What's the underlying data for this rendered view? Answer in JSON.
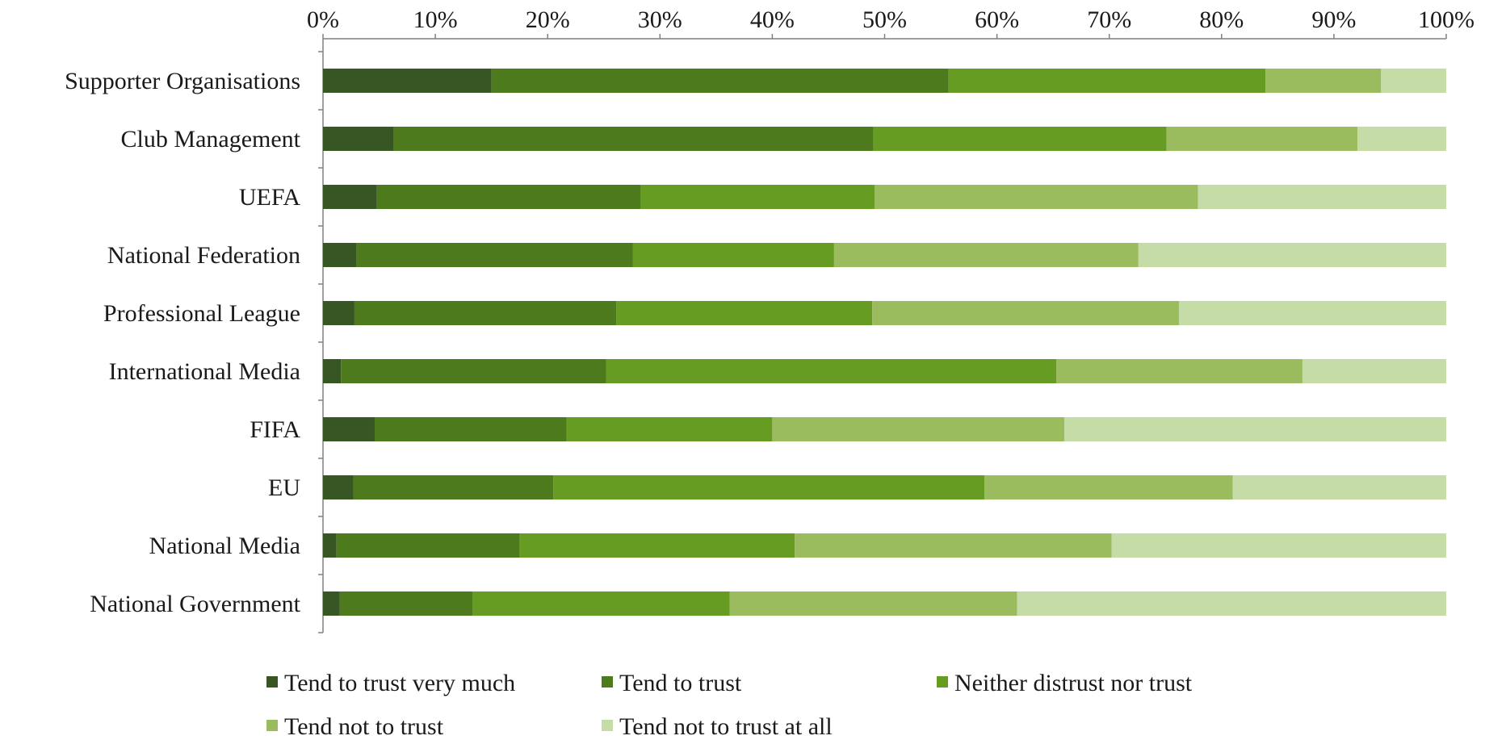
{
  "chart_data": {
    "type": "bar",
    "orientation": "horizontal",
    "stacked": "percent",
    "categories": [
      "Supporter Organisations",
      "Club Management",
      "UEFA",
      "National Federation",
      "Professional League",
      "International Media",
      "FIFA",
      "EU",
      "National Media",
      "National Government"
    ],
    "series": [
      {
        "name": "Tend to trust very much",
        "color": "#375623",
        "values": [
          15,
          6.3,
          4.8,
          3,
          2.8,
          1.6,
          4.6,
          2.7,
          1.2,
          1.5
        ]
      },
      {
        "name": "Tend to trust",
        "color": "#4e7a1e",
        "values": [
          40.7,
          42.7,
          23.5,
          24.6,
          23.3,
          23.6,
          17.1,
          17.8,
          16.3,
          11.8
        ]
      },
      {
        "name": "Neither distrust nor trust",
        "color": "#669c22",
        "values": [
          28.2,
          26.1,
          20.8,
          17.9,
          22.8,
          40.1,
          18.3,
          38.4,
          24.5,
          22.9
        ]
      },
      {
        "name": "Tend not to trust",
        "color": "#9bbb5f",
        "values": [
          10.3,
          17,
          28.8,
          27.1,
          27.3,
          21.9,
          26,
          22.1,
          28.2,
          25.6
        ]
      },
      {
        "name": "Tend not to trust at all",
        "color": "#c5dca6",
        "values": [
          5.8,
          7.9,
          22.1,
          27.4,
          23.8,
          12.8,
          34,
          19,
          29.8,
          38.2
        ]
      }
    ],
    "x_ticks": [
      "0%",
      "10%",
      "20%",
      "30%",
      "40%",
      "50%",
      "60%",
      "70%",
      "80%",
      "90%",
      "100%"
    ],
    "xlim": [
      0,
      100
    ],
    "x_axis_position": "top",
    "grid": false,
    "legend_position": "bottom",
    "title": "",
    "xlabel": "",
    "ylabel": ""
  }
}
